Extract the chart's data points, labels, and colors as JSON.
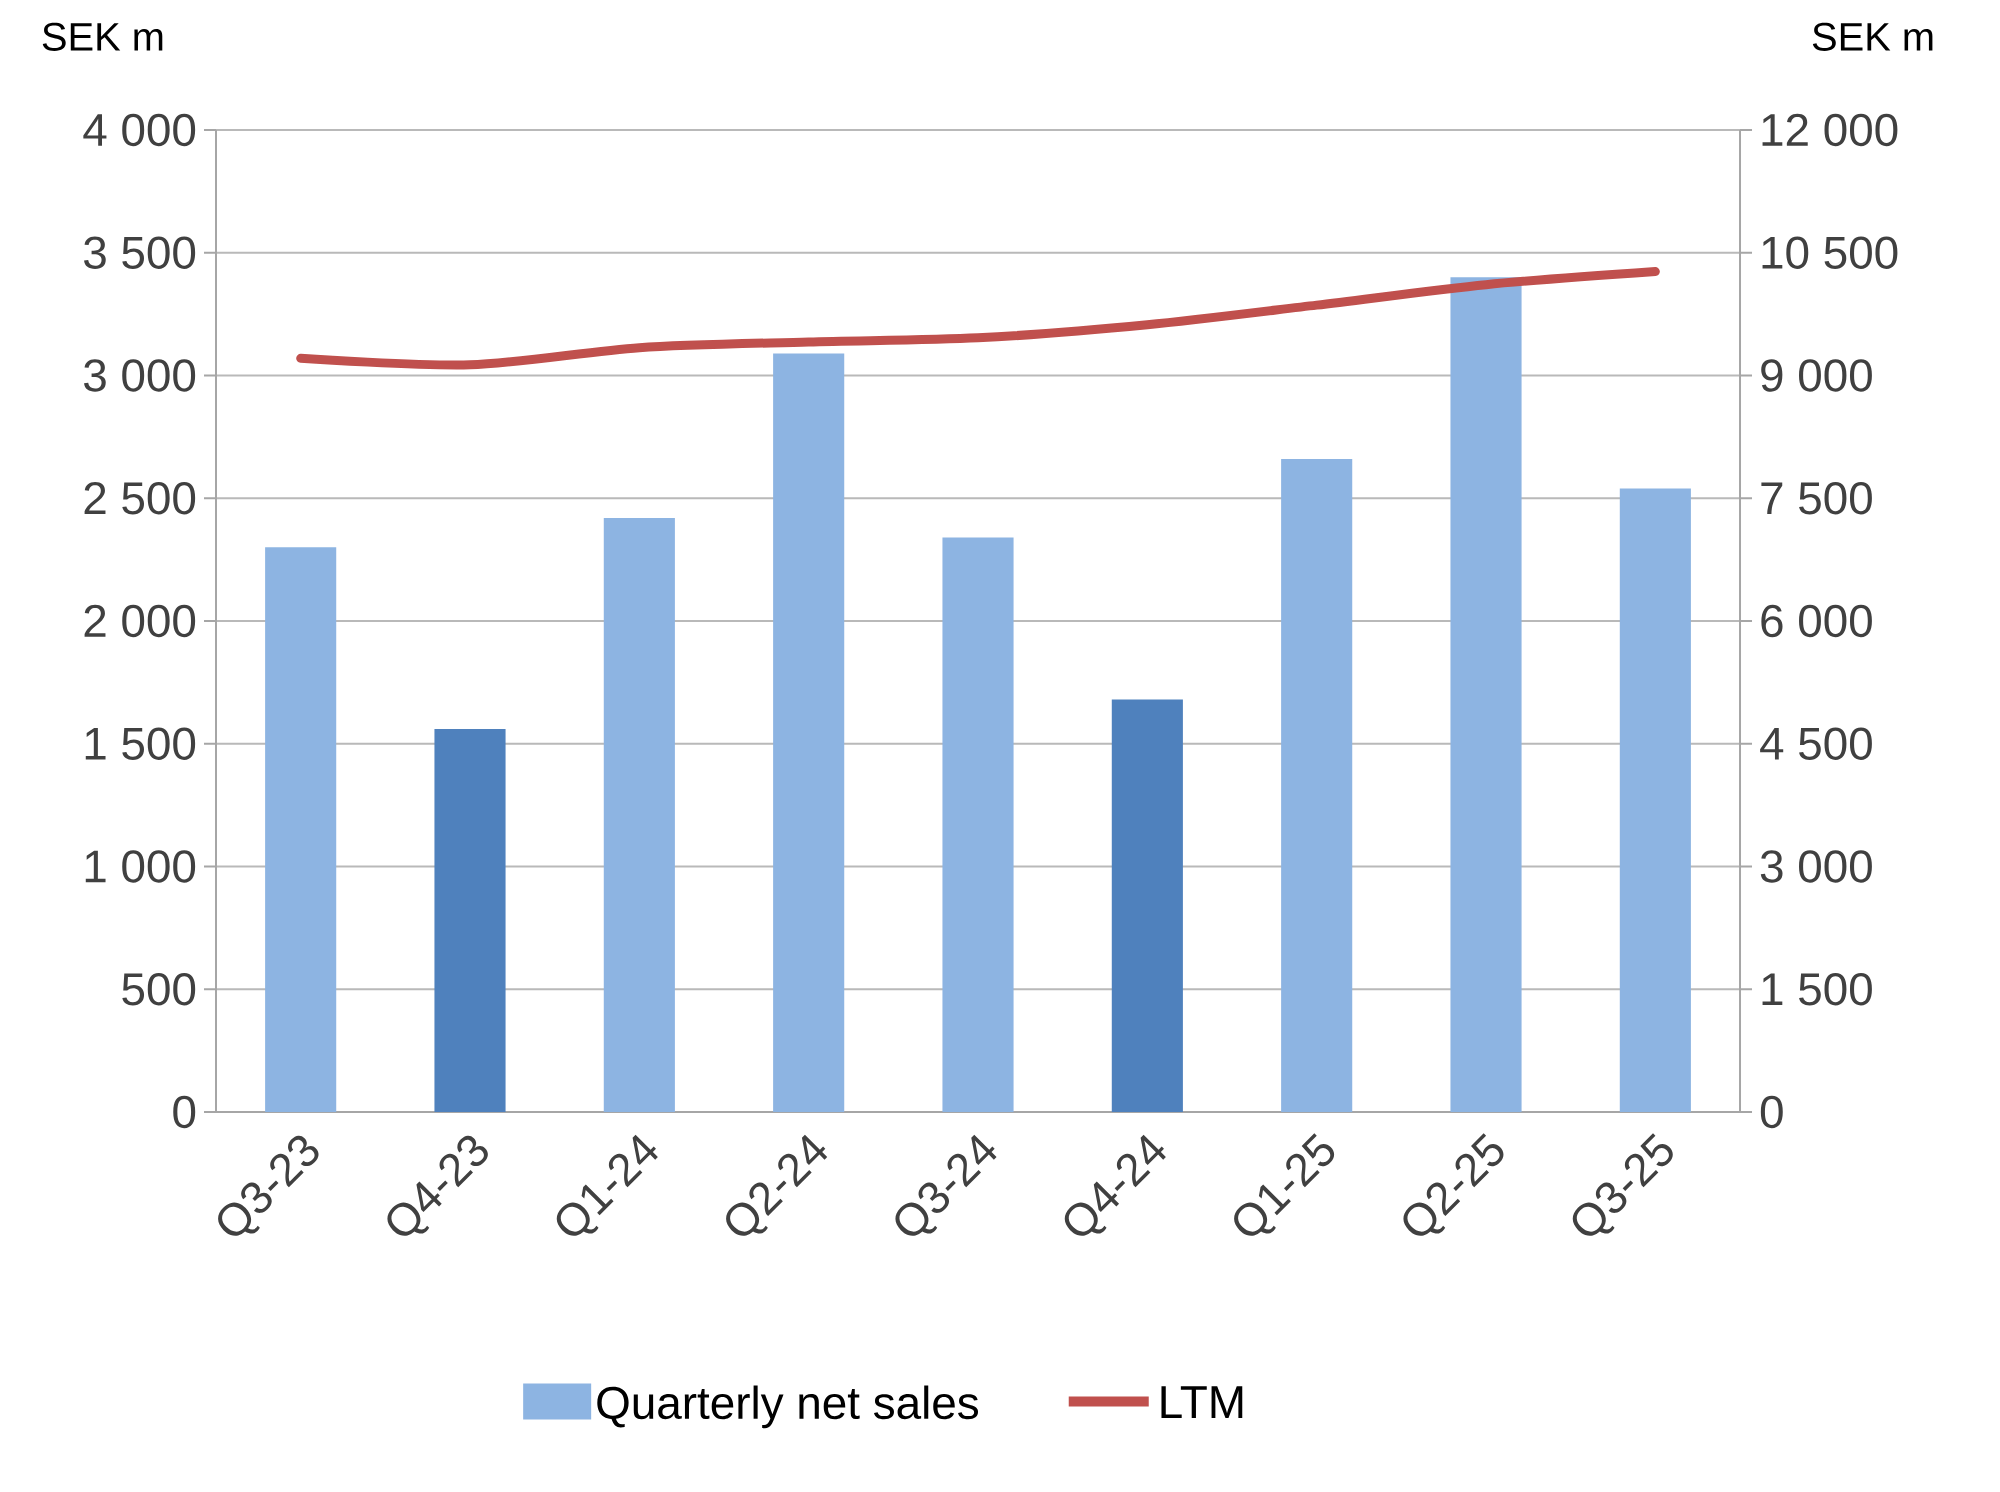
{
  "chart_data": {
    "type": "bar",
    "categories": [
      "Q3-23",
      "Q4-23",
      "Q1-24",
      "Q2-24",
      "Q3-24",
      "Q4-24",
      "Q1-25",
      "Q2-25",
      "Q3-25"
    ],
    "ylabel": "SEK m",
    "y2label": "SEK m",
    "ylim": [
      0,
      4000
    ],
    "yticks": [
      0,
      500,
      {
        "value": 1000,
        "label": "1 000"
      },
      {
        "value": 1500,
        "label": "1 500"
      },
      {
        "value": 2000,
        "label": "2 000"
      },
      {
        "value": 2500,
        "label": "2 500"
      },
      {
        "value": 3000,
        "label": "3 000"
      },
      {
        "value": 3500,
        "label": "3 500"
      },
      {
        "value": 4000,
        "label": "4 000"
      }
    ],
    "y2lim": [
      0,
      12000
    ],
    "y2ticks": [
      0,
      {
        "value": 1500,
        "label": "1 500"
      },
      {
        "value": 3000,
        "label": "3 000"
      },
      {
        "value": 4500,
        "label": "4 500"
      },
      {
        "value": 6000,
        "label": "6 000"
      },
      {
        "value": 7500,
        "label": "7 500"
      },
      {
        "value": 9000,
        "label": "9 000"
      },
      {
        "value": 10500,
        "label": "10 500"
      },
      {
        "value": 12000,
        "label": "12 000"
      }
    ],
    "grid": "y",
    "legend": "bottom",
    "series": [
      {
        "name": "Quarterly net sales",
        "color": "#8db4e2",
        "colors": [
          "#8db4e2",
          "#4f81bd",
          "#8db4e2",
          "#8db4e2",
          "#8db4e2",
          "#4f81bd",
          "#8db4e2",
          "#8db4e2",
          "#8db4e2"
        ],
        "values": [
          2300,
          1560,
          2420,
          3090,
          2340,
          1680,
          2660,
          3400,
          2540
        ]
      },
      {
        "name": "LTM",
        "type": "line",
        "axis": "y2",
        "color": "#c0504d",
        "values": [
          9210,
          9130,
          9340,
          9410,
          9460,
          9620,
          9860,
          10110,
          10270
        ]
      }
    ]
  }
}
